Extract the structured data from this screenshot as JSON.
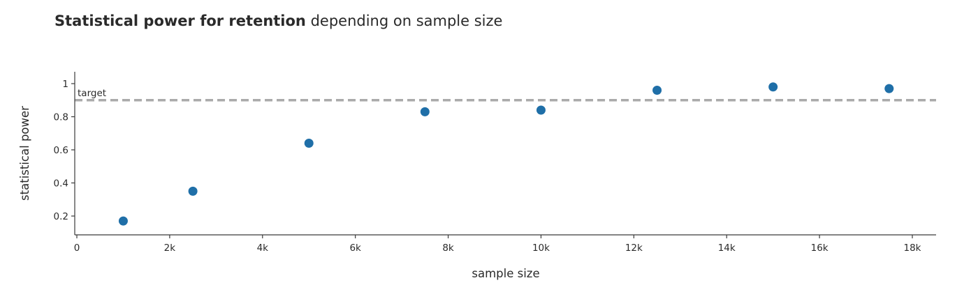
{
  "title": {
    "bold": "Statistical power for retention",
    "rest": "depending on sample size"
  },
  "chart_data": {
    "type": "scatter",
    "xlabel": "sample size",
    "ylabel": "statistical power",
    "xlim": [
      0,
      18500
    ],
    "ylim": [
      0.09,
      1.06
    ],
    "x_ticks": [
      0,
      2000,
      4000,
      6000,
      8000,
      10000,
      12000,
      14000,
      16000,
      18000
    ],
    "x_tick_labels": [
      "0",
      "2k",
      "4k",
      "6k",
      "8k",
      "10k",
      "12k",
      "14k",
      "16k",
      "18k"
    ],
    "y_ticks": [
      0.2,
      0.4,
      0.6,
      0.8,
      1
    ],
    "y_tick_labels": [
      "0.2",
      "0.4",
      "0.6",
      "0.8",
      "1"
    ],
    "grid": false,
    "series": [
      {
        "marker_color": "#1f6fa8",
        "x": [
          1000,
          2500,
          5000,
          7500,
          10000,
          12500,
          15000,
          17500
        ],
        "y": [
          0.17,
          0.35,
          0.64,
          0.83,
          0.84,
          0.96,
          0.98,
          0.97
        ]
      }
    ],
    "reference_line": {
      "y": 0.9,
      "label": "target",
      "color": "#aaaaaa",
      "style": "dashed"
    }
  }
}
